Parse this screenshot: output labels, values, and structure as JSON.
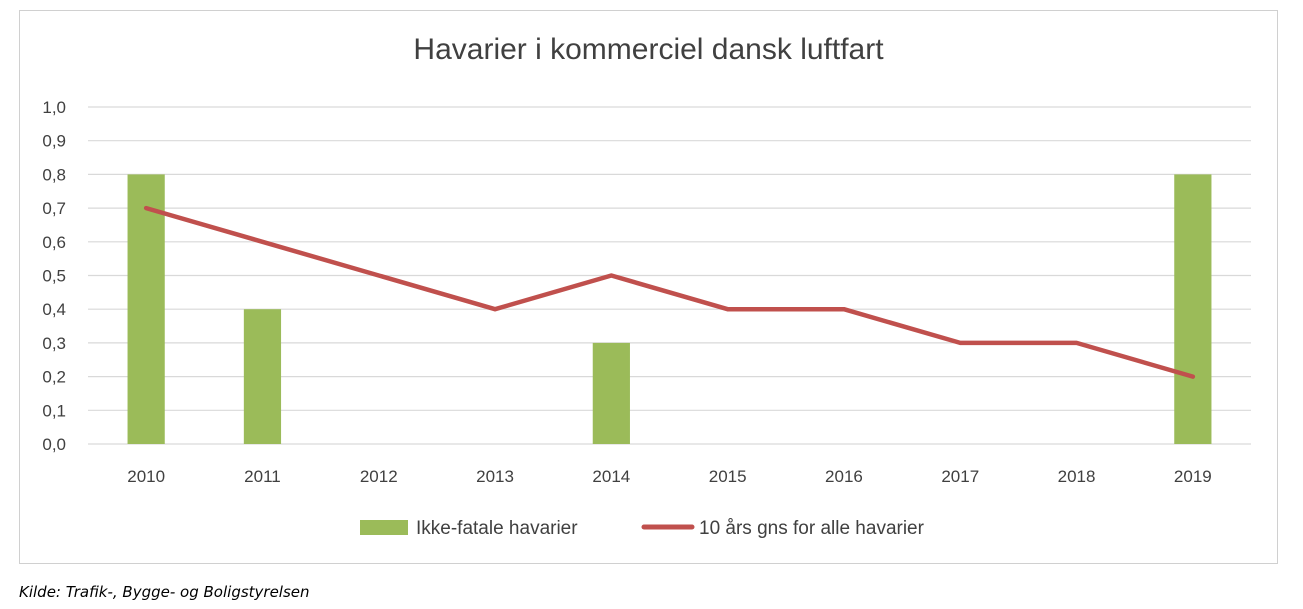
{
  "chart_data": {
    "type": "bar",
    "title": "Havarier i kommerciel dansk luftfart",
    "categories": [
      "2010",
      "2011",
      "2012",
      "2013",
      "2014",
      "2015",
      "2016",
      "2017",
      "2018",
      "2019"
    ],
    "series": [
      {
        "name": "Ikke-fatale havarier",
        "type": "bar",
        "color": "#9bbb59",
        "values": [
          0.8,
          0.4,
          0,
          0,
          0.3,
          0,
          0,
          0,
          0,
          0.8
        ]
      },
      {
        "name": "10 års gns for alle havarier",
        "type": "line",
        "color": "#c0504d",
        "values": [
          0.7,
          0.6,
          0.5,
          0.4,
          0.5,
          0.4,
          0.4,
          0.3,
          0.3,
          0.2
        ]
      }
    ],
    "y_ticks": [
      "0,0",
      "0,1",
      "0,2",
      "0,3",
      "0,4",
      "0,5",
      "0,6",
      "0,7",
      "0,8",
      "0,9",
      "1,0"
    ],
    "ylim": [
      0,
      1.0
    ],
    "grid": true,
    "legend_position": "bottom"
  },
  "source_note": "Kilde: Trafik-, Bygge- og Boligstyrelsen"
}
